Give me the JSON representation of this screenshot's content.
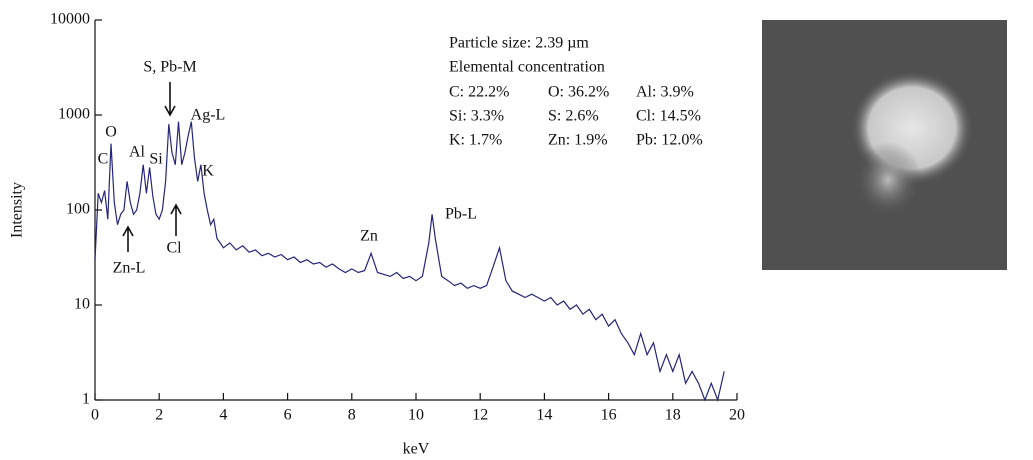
{
  "chart_data": {
    "type": "line",
    "color": "#25257a",
    "log_y": true,
    "x_label": "keV",
    "y_label": "Intensity",
    "xlim": [
      0,
      20
    ],
    "xticks": [
      0,
      2,
      4,
      6,
      8,
      10,
      12,
      14,
      16,
      18,
      20
    ],
    "ylim": [
      1,
      10000
    ],
    "yticks": [
      1,
      10,
      100,
      1000,
      10000
    ],
    "x": [
      0.0,
      0.1,
      0.2,
      0.3,
      0.4,
      0.5,
      0.6,
      0.7,
      0.8,
      0.9,
      1.0,
      1.1,
      1.2,
      1.3,
      1.4,
      1.5,
      1.6,
      1.7,
      1.8,
      1.9,
      2.0,
      2.1,
      2.2,
      2.3,
      2.4,
      2.5,
      2.6,
      2.7,
      2.8,
      2.9,
      3.0,
      3.1,
      3.2,
      3.3,
      3.4,
      3.5,
      3.6,
      3.7,
      3.8,
      3.9,
      4.0,
      4.2,
      4.4,
      4.6,
      4.8,
      5.0,
      5.2,
      5.4,
      5.6,
      5.8,
      6.0,
      6.2,
      6.4,
      6.6,
      6.8,
      7.0,
      7.2,
      7.4,
      7.6,
      7.8,
      8.0,
      8.2,
      8.4,
      8.6,
      8.8,
      9.0,
      9.2,
      9.4,
      9.6,
      9.8,
      10.0,
      10.2,
      10.4,
      10.5,
      10.6,
      10.8,
      11.0,
      11.2,
      11.4,
      11.6,
      11.8,
      12.0,
      12.2,
      12.4,
      12.6,
      12.8,
      13.0,
      13.2,
      13.4,
      13.6,
      13.8,
      14.0,
      14.2,
      14.4,
      14.6,
      14.8,
      15.0,
      15.2,
      15.4,
      15.6,
      15.8,
      16.0,
      16.2,
      16.4,
      16.6,
      16.8,
      17.0,
      17.2,
      17.4,
      17.6,
      17.8,
      18.0,
      18.2,
      18.4,
      18.6,
      18.8,
      19.0,
      19.2,
      19.4,
      19.6
    ],
    "values": [
      30,
      150,
      120,
      160,
      80,
      500,
      120,
      70,
      90,
      100,
      200,
      120,
      90,
      100,
      150,
      300,
      150,
      280,
      140,
      90,
      80,
      100,
      200,
      800,
      400,
      300,
      850,
      300,
      400,
      600,
      850,
      350,
      200,
      300,
      150,
      100,
      70,
      80,
      50,
      45,
      40,
      45,
      38,
      42,
      36,
      38,
      33,
      35,
      32,
      34,
      30,
      32,
      28,
      30,
      27,
      28,
      25,
      27,
      24,
      22,
      24,
      22,
      23,
      35,
      22,
      21,
      20,
      22,
      19,
      20,
      18,
      20,
      45,
      90,
      50,
      20,
      18,
      16,
      17,
      15,
      16,
      15,
      16,
      25,
      40,
      18,
      14,
      13,
      12,
      13,
      12,
      11,
      12,
      10,
      11,
      9,
      10,
      8,
      9,
      7,
      8,
      6,
      7,
      5,
      4,
      3,
      5,
      3,
      4,
      2,
      3,
      2,
      3,
      1.5,
      2,
      1.5,
      1,
      1.5,
      1,
      2
    ],
    "annotations": [
      "O",
      "C",
      "Al",
      "Si",
      "S, Pb-M",
      "Ag-L",
      "K",
      "Zn-L",
      "Cl",
      "Zn",
      "Pb-L"
    ],
    "info": {
      "particle_size": "Particle size: 2.39 µm",
      "heading": "Elemental concentration",
      "concentrations": [
        [
          "C: 22.2%",
          "O: 36.2%",
          "Al: 3.9%"
        ],
        [
          "Si: 3.3%",
          "S: 2.6%",
          "Cl: 14.5%"
        ],
        [
          "K: 1.7%",
          "Zn: 1.9%",
          "Pb: 12.0%"
        ]
      ]
    }
  }
}
